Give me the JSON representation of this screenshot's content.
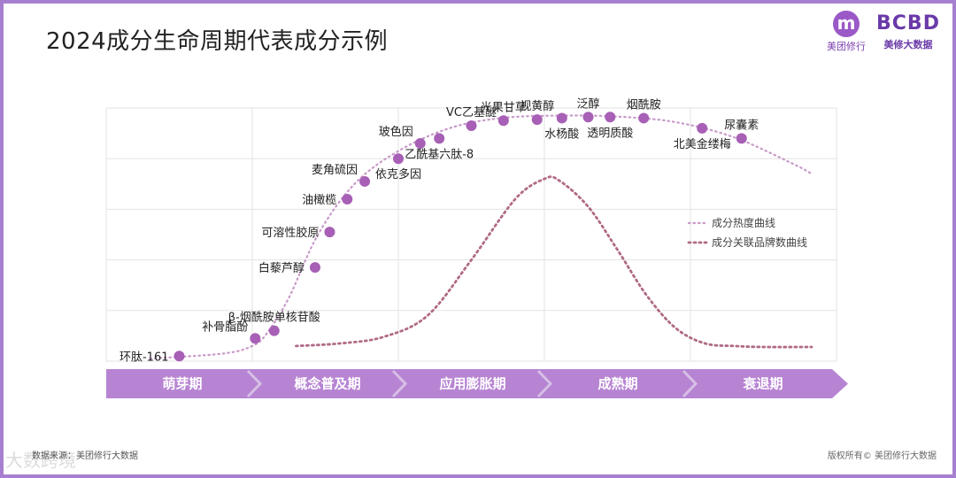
{
  "title": "2024成分生命周期代表成分示例",
  "logos": {
    "left_mark": "m",
    "left_caption": "美团修行",
    "right_mark": "BCBD",
    "right_caption": "美修大数据"
  },
  "footer": {
    "source": "数据来源：美团修行大数据",
    "copyright": "版权所有© 美团修行大数据",
    "watermark": "大数跨境"
  },
  "colors": {
    "accent": "#a67fd0",
    "dot": "#a760b6",
    "heat_curve": "#c89ac9",
    "brand_curve": "#b06a86",
    "phase_bar": "#b784d3",
    "grid": "#e3e3e3"
  },
  "chart_data": {
    "type": "line",
    "xlim": [
      0,
      5
    ],
    "ylim": [
      0,
      5
    ],
    "grid": true,
    "legend_position": "right",
    "phases": [
      "萌芽期",
      "概念普及期",
      "应用膨胀期",
      "成熟期",
      "衰退期"
    ],
    "series": [
      {
        "name": "成分热度曲线",
        "style": "dotted-light",
        "x": [
          0.3,
          0.8,
          1.0,
          1.1,
          1.25,
          1.45,
          1.7,
          2.0,
          2.35,
          2.7,
          3.1,
          3.5,
          3.9,
          4.3,
          4.7,
          4.83
        ],
        "y": [
          0.05,
          0.15,
          0.3,
          0.55,
          1.25,
          2.5,
          3.5,
          4.15,
          4.6,
          4.8,
          4.85,
          4.83,
          4.72,
          4.42,
          3.9,
          3.7
        ]
      },
      {
        "name": "成分关联品牌数曲线",
        "style": "dotted-dark",
        "x": [
          1.3,
          1.6,
          1.9,
          2.2,
          2.5,
          2.8,
          3.0,
          3.1,
          3.3,
          3.5,
          3.7,
          3.9,
          4.1,
          4.3,
          4.5,
          4.83
        ],
        "y": [
          0.3,
          0.35,
          0.48,
          0.9,
          2.0,
          3.2,
          3.6,
          3.57,
          3.05,
          2.2,
          1.3,
          0.65,
          0.35,
          0.3,
          0.28,
          0.28
        ]
      }
    ],
    "points": [
      {
        "label": "环肽-161",
        "x": 0.5,
        "y": 0.1,
        "label_side": "left"
      },
      {
        "label": "补骨脂酚",
        "x": 1.02,
        "y": 0.45,
        "label_side": "left-up"
      },
      {
        "label": "β-烟酰胺单核苷酸",
        "x": 1.15,
        "y": 0.6,
        "label_side": "up"
      },
      {
        "label": "白藜芦醇",
        "x": 1.43,
        "y": 1.85,
        "label_side": "left"
      },
      {
        "label": "可溶性胶原",
        "x": 1.53,
        "y": 2.55,
        "label_side": "left"
      },
      {
        "label": "油橄榄",
        "x": 1.65,
        "y": 3.2,
        "label_side": "left"
      },
      {
        "label": "麦角硫因",
        "x": 1.77,
        "y": 3.55,
        "label_side": "left-up"
      },
      {
        "label": "依克多因",
        "x": 2.0,
        "y": 4.0,
        "label_side": "down"
      },
      {
        "label": "玻色因",
        "x": 2.15,
        "y": 4.3,
        "label_side": "left-up"
      },
      {
        "label": "乙酰基六肽-8",
        "x": 2.28,
        "y": 4.4,
        "label_side": "down"
      },
      {
        "label": "VC乙基醚",
        "x": 2.5,
        "y": 4.65,
        "label_side": "up"
      },
      {
        "label": "光果甘草",
        "x": 2.72,
        "y": 4.75,
        "label_side": "up"
      },
      {
        "label": "视黄醇",
        "x": 2.95,
        "y": 4.77,
        "label_side": "up"
      },
      {
        "label": "水杨酸",
        "x": 3.12,
        "y": 4.8,
        "label_side": "down"
      },
      {
        "label": "泛醇",
        "x": 3.3,
        "y": 4.82,
        "label_side": "up"
      },
      {
        "label": "透明质酸",
        "x": 3.45,
        "y": 4.82,
        "label_side": "down"
      },
      {
        "label": "烟酰胺",
        "x": 3.68,
        "y": 4.8,
        "label_side": "up"
      },
      {
        "label": "北美金缕梅",
        "x": 4.08,
        "y": 4.6,
        "label_side": "down"
      },
      {
        "label": "尿囊素",
        "x": 4.35,
        "y": 4.4,
        "label_side": "up"
      }
    ]
  }
}
